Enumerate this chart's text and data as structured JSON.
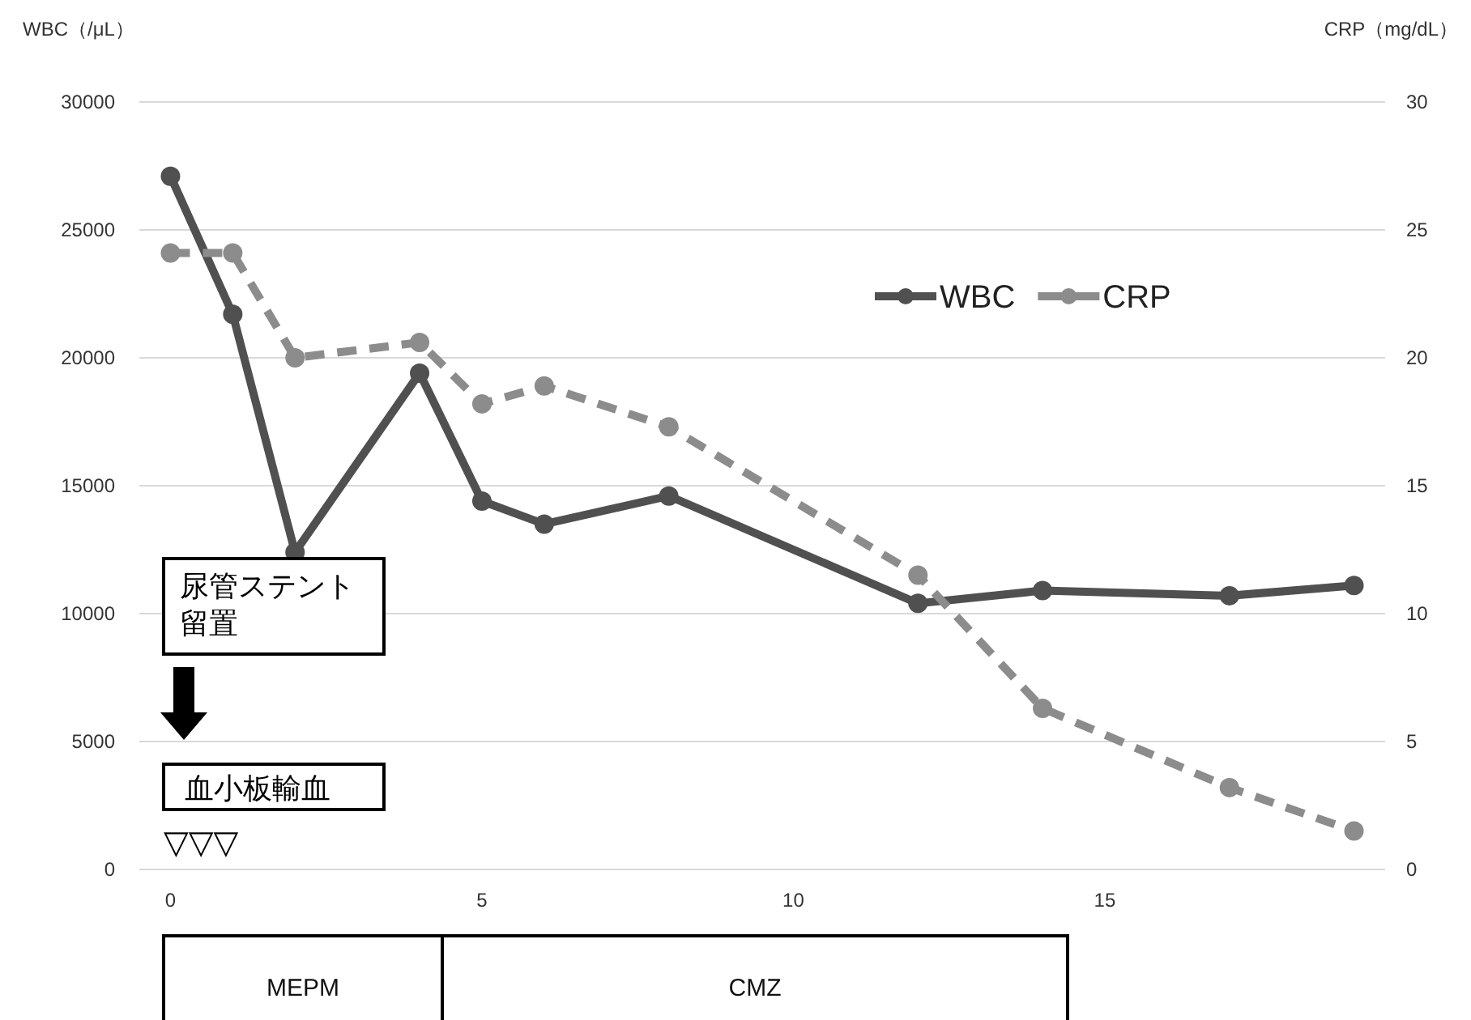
{
  "chart_data": {
    "type": "line",
    "xlabel": null,
    "ylabel": "WBC（/μL）",
    "y2label": "CRP（mg/dL）",
    "x": [
      0,
      1,
      2,
      4,
      5,
      6,
      8,
      12,
      14,
      17,
      19
    ],
    "series": [
      {
        "name": "WBC",
        "color": "#505050",
        "line_style": "solid",
        "values": [
          27100,
          21700,
          12400,
          19400,
          14400,
          13500,
          14600,
          10400,
          10900,
          10700,
          11100
        ]
      },
      {
        "name": "CRP",
        "color": "#8c8c8c",
        "line_style": "dashed",
        "axis": "y2",
        "values": [
          24.1,
          24.1,
          20.0,
          20.6,
          18.2,
          18.9,
          17.3,
          11.5,
          6.3,
          3.2,
          1.5
        ]
      }
    ],
    "xlim": [
      -0.5,
      19.5
    ],
    "xticks": [
      0,
      5,
      10,
      15
    ],
    "ylim": [
      0,
      30000
    ],
    "yticks": [
      0,
      5000,
      10000,
      15000,
      20000,
      25000,
      30000
    ],
    "y2lim": [
      0,
      30
    ],
    "y2ticks": [
      0,
      5,
      10,
      15,
      20,
      25,
      30
    ],
    "grid": "y",
    "marker": "circle",
    "legend": "right",
    "annotations": [
      "尿管ステント留置",
      "血小板輸血",
      "▽▽▽",
      "MEPM",
      "CMZ"
    ]
  }
}
